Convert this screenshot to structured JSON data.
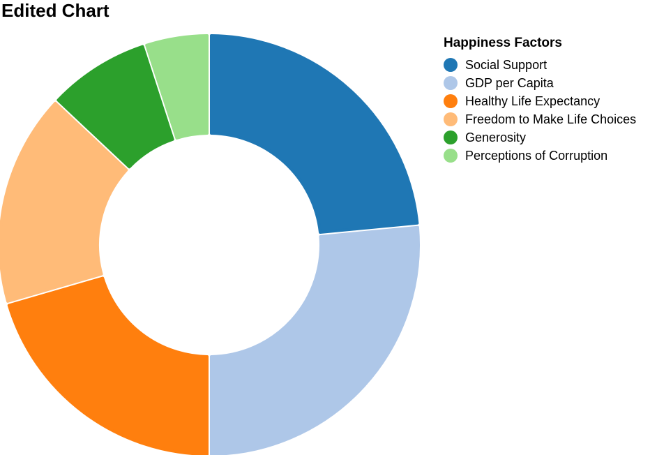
{
  "chart_data": {
    "type": "pie",
    "variant": "donut",
    "title": "Edited Chart",
    "legend_title": "Happiness Factors",
    "legend_position": "right",
    "series": [
      {
        "name": "Social Support",
        "value": 23.5,
        "color": "#1f77b4"
      },
      {
        "name": "GDP per Capita",
        "value": 26.5,
        "color": "#aec7e8"
      },
      {
        "name": "Healthy Life Expectancy",
        "value": 20.5,
        "color": "#ff7f0e"
      },
      {
        "name": "Freedom to Make Life Choices",
        "value": 16.5,
        "color": "#ffbb78"
      },
      {
        "name": "Generosity",
        "value": 8.0,
        "color": "#2ca02c"
      },
      {
        "name": "Perceptions of Corruption",
        "value": 5.0,
        "color": "#98df8a"
      }
    ]
  }
}
